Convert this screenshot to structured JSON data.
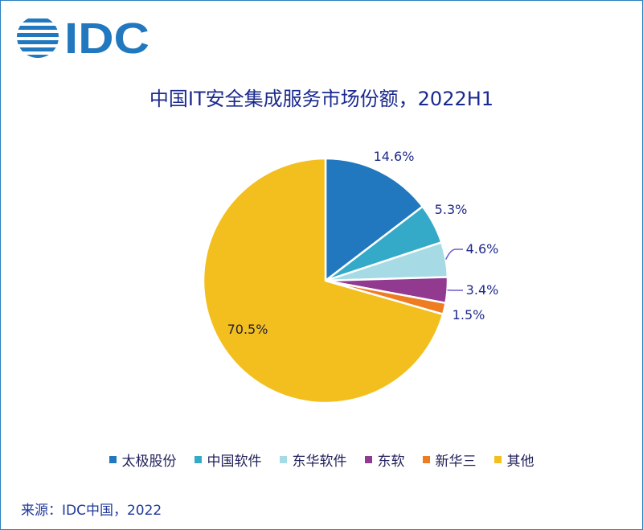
{
  "logo": {
    "text": "IDC"
  },
  "chart_data": {
    "type": "pie",
    "title": "中国IT安全集成服务市场份额，2022H1",
    "labels": [
      "太极股份",
      "中国软件",
      "东华软件",
      "东软",
      "新华三",
      "其他"
    ],
    "values": [
      14.6,
      5.3,
      4.6,
      3.4,
      1.5,
      70.5
    ],
    "value_labels": [
      "14.6%",
      "5.3%",
      "4.6%",
      "3.4%",
      "1.5%",
      "70.5%"
    ],
    "colors": [
      "#2178be",
      "#34aac8",
      "#a6dbe5",
      "#923a90",
      "#ee7d22",
      "#f3bf1e"
    ],
    "legend_position": "bottom"
  },
  "source": "来源：IDC中国，2022"
}
